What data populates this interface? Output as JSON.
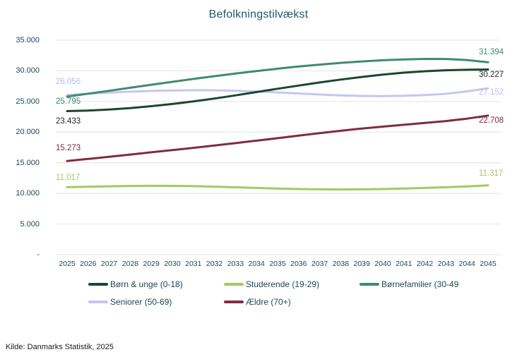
{
  "title": "Befolkningstilvækst",
  "source": {
    "text": "Kilde: Danmarks Statistik, 2025"
  },
  "colors": {
    "background": "#ffffff",
    "title": "#1f5a64",
    "axis_label": "#1d4855",
    "gridline": "#e4e4e4",
    "source_text": "#1a1a1a"
  },
  "legend": {
    "position": "bottom",
    "items": [
      {
        "label": "Børn & unge (0-18)",
        "series_index": 0
      },
      {
        "label": "Studerende (19-29)",
        "series_index": 1
      },
      {
        "label": "Børnefamilier (30-49",
        "series_index": 2
      },
      {
        "label": "Seniorer (50-69)",
        "series_index": 3
      },
      {
        "label": "Ældre (70+)",
        "series_index": 4
      }
    ]
  },
  "chart_data": {
    "type": "line",
    "title": "Befolkningstilvækst",
    "xlabel": "",
    "ylabel": "",
    "grid": "horizontal",
    "legend_position": "bottom",
    "x": [
      "2025",
      "2026",
      "2027",
      "2028",
      "2029",
      "2030",
      "2031",
      "2032",
      "2033",
      "2034",
      "2035",
      "2036",
      "2037",
      "2038",
      "2039",
      "2040",
      "2041",
      "2042",
      "2043",
      "2044",
      "2045"
    ],
    "ylim": [
      0,
      35000
    ],
    "yticks": [
      {
        "value": 35000,
        "label": "35.000"
      },
      {
        "value": 30000,
        "label": "30.000"
      },
      {
        "value": 25000,
        "label": "25.000"
      },
      {
        "value": 20000,
        "label": "20.000"
      },
      {
        "value": 15000,
        "label": "15.000"
      },
      {
        "value": 10000,
        "label": "10.000"
      },
      {
        "value": 5000,
        "label": "5.000"
      },
      {
        "value": 0,
        "label": "-"
      }
    ],
    "series": [
      {
        "id": "born-unge",
        "name": "Børn & unge (0-18)",
        "color": "#1a472f",
        "value_label_color": "#252423",
        "first_label": "23.433",
        "last_label": "30.227",
        "values": [
          23433,
          23520,
          23690,
          23930,
          24230,
          24590,
          25010,
          25480,
          26000,
          26540,
          27080,
          27600,
          28100,
          28570,
          29000,
          29380,
          29700,
          29930,
          30090,
          30180,
          30227
        ]
      },
      {
        "id": "studerende",
        "name": "Studerende (19-29)",
        "color": "#a2c966",
        "value_label_color": "#a2c966",
        "first_label": "11.017",
        "last_label": "11.317",
        "values": [
          11017,
          11090,
          11160,
          11210,
          11240,
          11230,
          11180,
          11100,
          11000,
          10890,
          10790,
          10710,
          10660,
          10640,
          10660,
          10710,
          10790,
          10890,
          11010,
          11150,
          11317
        ]
      },
      {
        "id": "bornefamilier",
        "name": "Børnefamilier (30-49)",
        "color": "#3f8b71",
        "value_label_color": "#3f8b71",
        "first_label": "25.795",
        "last_label": "31.394",
        "values": [
          25795,
          26270,
          26750,
          27240,
          27730,
          28210,
          28680,
          29130,
          29560,
          29970,
          30350,
          30700,
          31020,
          31300,
          31540,
          31730,
          31870,
          31950,
          31940,
          31760,
          31394
        ]
      },
      {
        "id": "seniorer",
        "name": "Seniorer (50-69)",
        "color": "#c4c6f0",
        "value_label_color": "#b9bcea",
        "first_label": "26.056",
        "last_label": "27.152",
        "values": [
          26056,
          26270,
          26450,
          26600,
          26720,
          26800,
          26840,
          26820,
          26750,
          26630,
          26480,
          26310,
          26140,
          26000,
          25910,
          25880,
          25930,
          26060,
          26250,
          26650,
          27152
        ]
      },
      {
        "id": "aeldre",
        "name": "Ældre (70+)",
        "color": "#7e2d40",
        "value_label_color": "#7d2b3e",
        "first_label": "15.273",
        "last_label": "22.708",
        "values": [
          15273,
          15620,
          15980,
          16340,
          16700,
          17060,
          17430,
          17810,
          18200,
          18600,
          19010,
          19420,
          19830,
          20220,
          20580,
          20900,
          21200,
          21500,
          21810,
          22200,
          22708
        ]
      }
    ],
    "label_offsets": {
      "start": [
        15,
        -13,
        7,
        -19,
        -18
      ],
      "end": [
        8,
        -17,
        -14,
        6,
        7
      ]
    },
    "draw_order": [
      3,
      1,
      4,
      2,
      0
    ]
  }
}
